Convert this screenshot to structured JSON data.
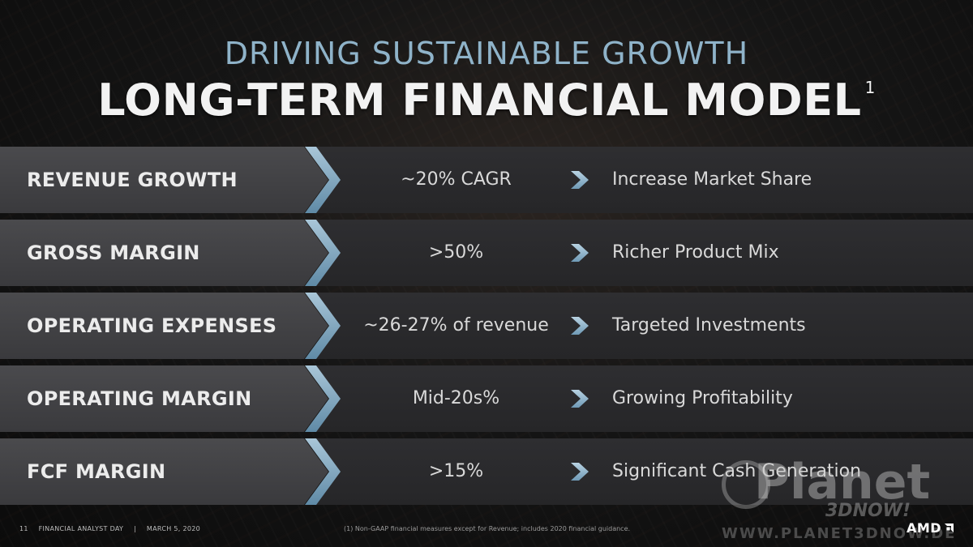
{
  "header": {
    "subtitle": "DRIVING SUSTAINABLE GROWTH",
    "title": "LONG-TERM FINANCIAL MODEL",
    "title_footnote_marker": "1"
  },
  "rows": [
    {
      "label": "REVENUE GROWTH",
      "value": "~20% CAGR",
      "note": "Increase Market Share"
    },
    {
      "label": "GROSS MARGIN",
      "value": ">50%",
      "note": "Richer Product Mix"
    },
    {
      "label": "OPERATING EXPENSES",
      "value": "~26-27% of revenue",
      "note": "Targeted Investments"
    },
    {
      "label": "OPERATING MARGIN",
      "value": "Mid-20s%",
      "note": "Growing Profitability"
    },
    {
      "label": "FCF MARGIN",
      "value": ">15%",
      "note": "Significant Cash Generation"
    }
  ],
  "footer": {
    "page_number": "11",
    "event": "FINANCIAL ANALYST DAY",
    "separator": "|",
    "date": "MARCH 5, 2020",
    "footnote": "(1) Non-GAAP financial measures except for Revenue; includes 2020 financial guidance.",
    "logo_text": "AMD"
  },
  "watermark": {
    "planet": "Planet",
    "brand": "3DNOW!",
    "url": "WWW.PLANET3DNOW.DE"
  },
  "colors": {
    "accent_blue": "#8fb3c9",
    "chevron_blue": "#7fa7c2"
  }
}
